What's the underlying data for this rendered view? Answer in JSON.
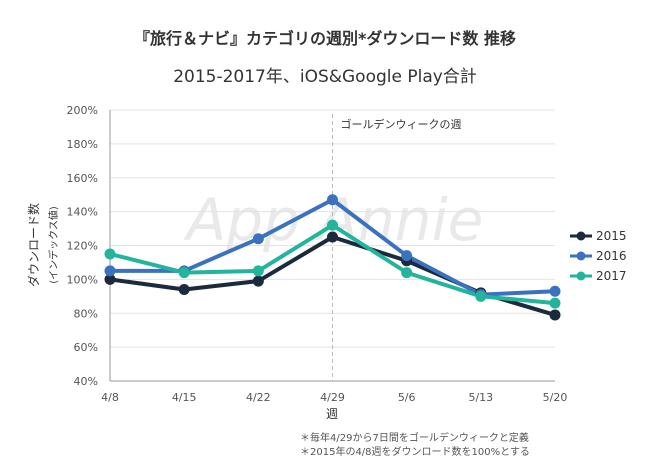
{
  "chart_data": {
    "type": "line",
    "title": "『旅行＆ナビ』カテゴリの週別*ダウンロード数 推移",
    "subtitle": "2015-2017年、iOS&Google Play合計",
    "xlabel": "週",
    "ylabel": "ダウンロード数",
    "ylabel_sub": "(インデックス値)",
    "categories": [
      "4/8",
      "4/15",
      "4/22",
      "4/29",
      "5/6",
      "5/13",
      "5/20"
    ],
    "ylim": [
      40,
      200
    ],
    "yticks": [
      40,
      60,
      80,
      100,
      120,
      140,
      160,
      180,
      200
    ],
    "ytick_suffix": "%",
    "grid": true,
    "legend_position": "right",
    "series": [
      {
        "name": "2015",
        "color": "#1b2a3d",
        "values": [
          100,
          94,
          99,
          125,
          111,
          92,
          79
        ]
      },
      {
        "name": "2016",
        "color": "#3a72c0",
        "values": [
          105,
          105,
          124,
          147,
          114,
          91,
          93
        ]
      },
      {
        "name": "2017",
        "color": "#23b59b",
        "values": [
          115,
          104,
          105,
          132,
          104,
          90,
          86
        ]
      }
    ],
    "annotation": {
      "category": "4/29",
      "text": "ゴールデンウィークの週"
    },
    "notes": [
      "＊毎年4/29から7日間をゴールデンウィークと定義",
      "＊2015年の4/8週をダウンロード数を100%とする"
    ],
    "watermark": "App Annie"
  }
}
